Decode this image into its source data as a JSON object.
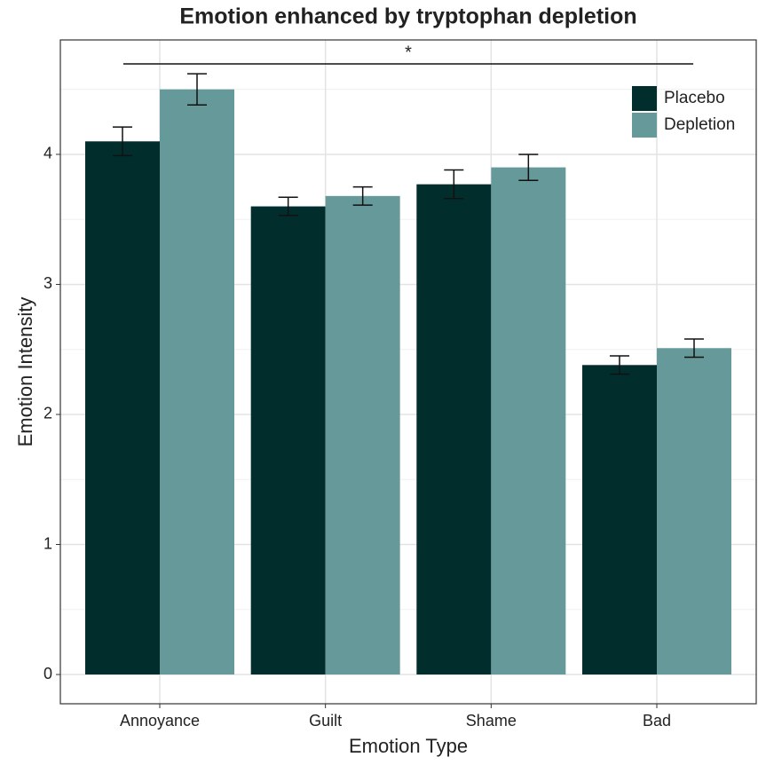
{
  "chart_data": {
    "type": "bar",
    "title": "Emotion enhanced by tryptophan depletion",
    "x_label": "Emotion Type",
    "y_label": "Emotion Intensity",
    "categories": [
      "Annoyance",
      "Guilt",
      "Shame",
      "Bad"
    ],
    "series": [
      {
        "name": "Placebo",
        "color": "#022d2d",
        "values": [
          4.1,
          3.6,
          3.77,
          2.38
        ],
        "errors": [
          0.11,
          0.07,
          0.11,
          0.07
        ]
      },
      {
        "name": "Depletion",
        "color": "#669999",
        "values": [
          4.5,
          3.68,
          3.9,
          2.51
        ],
        "errors": [
          0.12,
          0.07,
          0.1,
          0.07
        ]
      }
    ],
    "ylim": [
      -0.225,
      4.88
    ],
    "yticks": [
      0,
      1,
      2,
      3,
      4
    ],
    "minor_yticks": [
      0.5,
      1.5,
      2.5,
      3.5,
      4.5
    ],
    "grid": true,
    "legend": "top-right",
    "annotation": "*"
  }
}
